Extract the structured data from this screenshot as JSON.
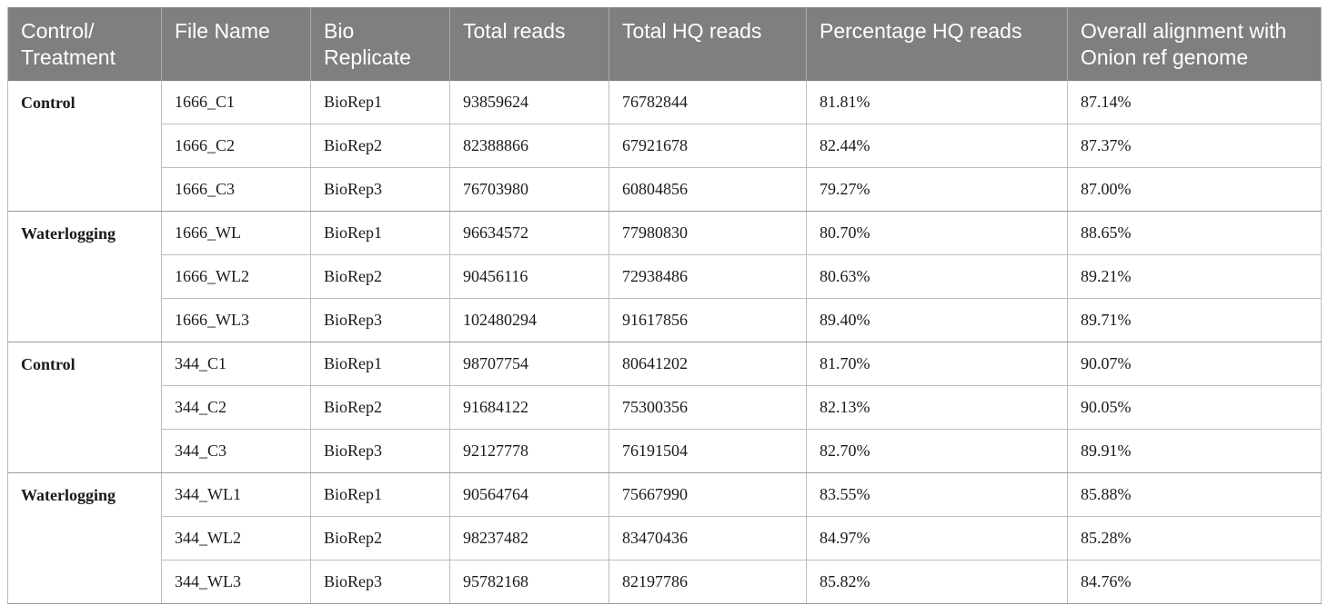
{
  "table": {
    "headers": [
      "Control/ Treatment",
      "File Name",
      "Bio Replicate",
      "Total reads",
      "Total HQ reads",
      "Percentage HQ reads",
      "Overall alignment with Onion ref genome"
    ],
    "groups": [
      {
        "label": "Control",
        "rows": [
          [
            "1666_C1",
            "BioRep1",
            "93859624",
            "76782844",
            "81.81%",
            "87.14%"
          ],
          [
            "1666_C2",
            "BioRep2",
            "82388866",
            "67921678",
            "82.44%",
            "87.37%"
          ],
          [
            "1666_C3",
            "BioRep3",
            "76703980",
            "60804856",
            "79.27%",
            "87.00%"
          ]
        ]
      },
      {
        "label": "Waterlogging",
        "rows": [
          [
            "1666_WL",
            "BioRep1",
            "96634572",
            "77980830",
            "80.70%",
            "88.65%"
          ],
          [
            "1666_WL2",
            "BioRep2",
            "90456116",
            "72938486",
            "80.63%",
            "89.21%"
          ],
          [
            "1666_WL3",
            "BioRep3",
            "102480294",
            "91617856",
            "89.40%",
            "89.71%"
          ]
        ]
      },
      {
        "label": "Control",
        "rows": [
          [
            "344_C1",
            "BioRep1",
            "98707754",
            "80641202",
            "81.70%",
            "90.07%"
          ],
          [
            "344_C2",
            "BioRep2",
            "91684122",
            "75300356",
            "82.13%",
            "90.05%"
          ],
          [
            "344_C3",
            "BioRep3",
            "92127778",
            "76191504",
            "82.70%",
            "89.91%"
          ]
        ]
      },
      {
        "label": "Waterlogging",
        "rows": [
          [
            "344_WL1",
            "BioRep1",
            "90564764",
            "75667990",
            "83.55%",
            "85.88%"
          ],
          [
            "344_WL2",
            "BioRep2",
            "98237482",
            "83470436",
            "84.97%",
            "85.28%"
          ],
          [
            "344_WL3",
            "BioRep3",
            "95782168",
            "82197786",
            "85.82%",
            "84.76%"
          ]
        ]
      }
    ]
  },
  "colors": {
    "header_bg": "#7f7f7f",
    "header_text": "#ffffff",
    "grid": "#bdbdbd"
  }
}
